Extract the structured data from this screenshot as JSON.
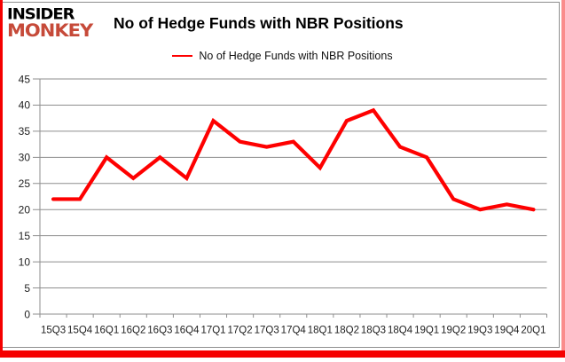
{
  "logo": {
    "line1": "INSIDER",
    "line2": "MONKEY"
  },
  "header": {
    "title": "No of Hedge Funds with NBR Positions"
  },
  "legend": {
    "label": "No of Hedge Funds with NBR Positions"
  },
  "colors": {
    "line_red": "#fe0000",
    "frame_red": "#f50000",
    "logo_red": "#c64a39",
    "grid_gray": "#8e8e8e",
    "tick_text": "#1f1f1f"
  },
  "chart_data": {
    "type": "line",
    "title": "No of Hedge Funds with NBR Positions",
    "categories": [
      "15Q3",
      "15Q4",
      "16Q1",
      "16Q2",
      "16Q3",
      "16Q4",
      "17Q1",
      "17Q2",
      "17Q3",
      "17Q4",
      "18Q1",
      "18Q2",
      "18Q3",
      "18Q4",
      "19Q1",
      "19Q2",
      "19Q3",
      "19Q4",
      "20Q1"
    ],
    "series": [
      {
        "name": "No of Hedge Funds with NBR Positions",
        "color": "#fe0000",
        "values": [
          22,
          22,
          30,
          26,
          30,
          26,
          37,
          33,
          32,
          33,
          28,
          37,
          39,
          32,
          30,
          22,
          20,
          21,
          20
        ]
      }
    ],
    "ylim": [
      0,
      45
    ],
    "ytick_step": 5,
    "xlabel": "",
    "ylabel": "",
    "grid": true,
    "legend_position": "top-center"
  }
}
